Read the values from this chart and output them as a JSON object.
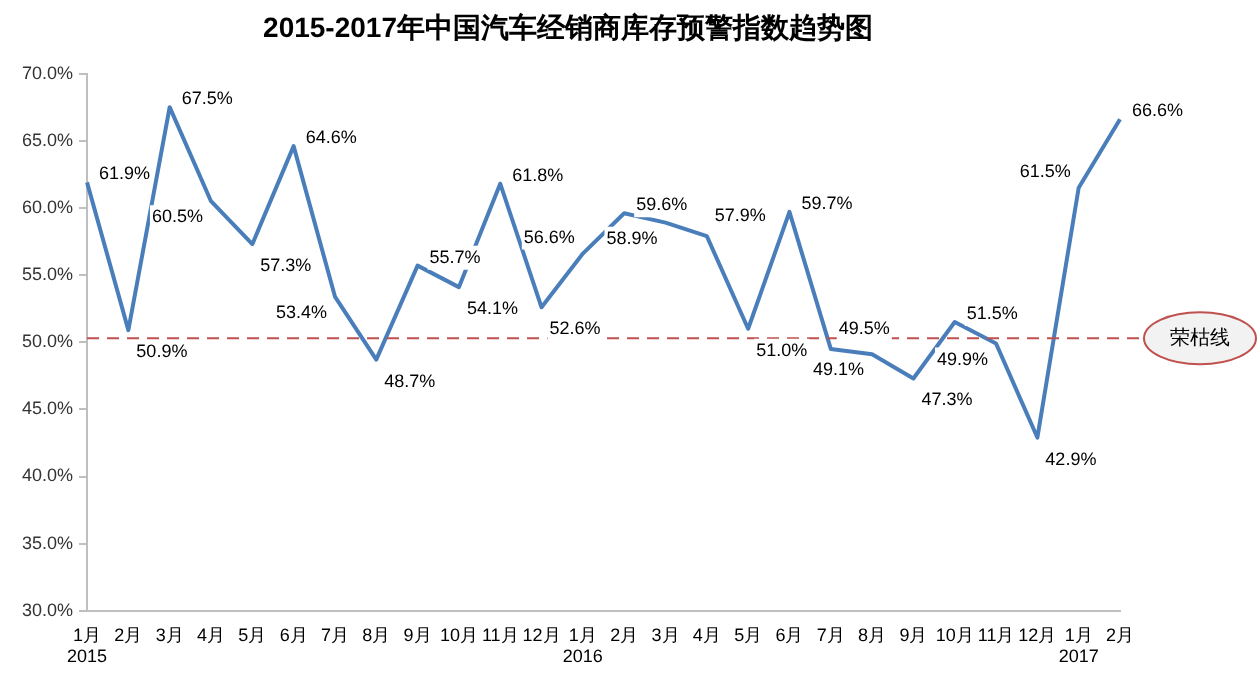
{
  "chart_data": {
    "type": "line",
    "title": "2015-2017年中国汽车经销商库存预警指数趋势图",
    "categories": [
      "1月\n2015",
      "2月",
      "3月",
      "4月",
      "5月",
      "6月",
      "7月",
      "8月",
      "9月",
      "10月",
      "11月",
      "12月",
      "1月\n2016",
      "2月",
      "3月",
      "4月",
      "5月",
      "6月",
      "7月",
      "8月",
      "9月",
      "10月",
      "11月",
      "12月",
      "1月\n2017",
      "2月"
    ],
    "series": [
      {
        "color": "#4a7ebb",
        "values": [
          61.9,
          50.9,
          67.5,
          60.5,
          57.3,
          64.6,
          53.4,
          48.7,
          55.7,
          54.1,
          61.8,
          52.6,
          56.6,
          59.6,
          58.9,
          57.9,
          51.0,
          59.7,
          49.5,
          49.1,
          47.3,
          51.5,
          49.9,
          42.9,
          61.5,
          66.6
        ],
        "value_labels": [
          "61.9%",
          "50.9%",
          "67.5%",
          "60.5%",
          "57.3%",
          "64.6%",
          "53.4%",
          "48.7%",
          "55.7%",
          "54.1%",
          "61.8%",
          "52.6%",
          "56.6%",
          "59.6%",
          "58.9%",
          "57.9%",
          "51.0%",
          "59.7%",
          "49.5%",
          "49.1%",
          "47.3%",
          "51.5%",
          "49.9%",
          "42.9%",
          "61.5%",
          "66.6%"
        ]
      }
    ],
    "ylim": [
      30,
      70
    ],
    "yticks": [
      {
        "value": 30,
        "label": "30.0%"
      },
      {
        "value": 35,
        "label": "35.0%"
      },
      {
        "value": 40,
        "label": "40.0%"
      },
      {
        "value": 45,
        "label": "45.0%"
      },
      {
        "value": 50,
        "label": "50.0%"
      },
      {
        "value": 55,
        "label": "55.0%"
      },
      {
        "value": 60,
        "label": "60.0%"
      },
      {
        "value": 65,
        "label": "65.0%"
      },
      {
        "value": 70,
        "label": "70.0%"
      }
    ],
    "ref_lines": [
      {
        "axis": "y",
        "value": 50.3,
        "label": "荣枯线",
        "color": "#c0504d",
        "line_style": "dashed"
      }
    ],
    "grid": false,
    "legend": false,
    "marker": "none",
    "line_style": "solid"
  }
}
